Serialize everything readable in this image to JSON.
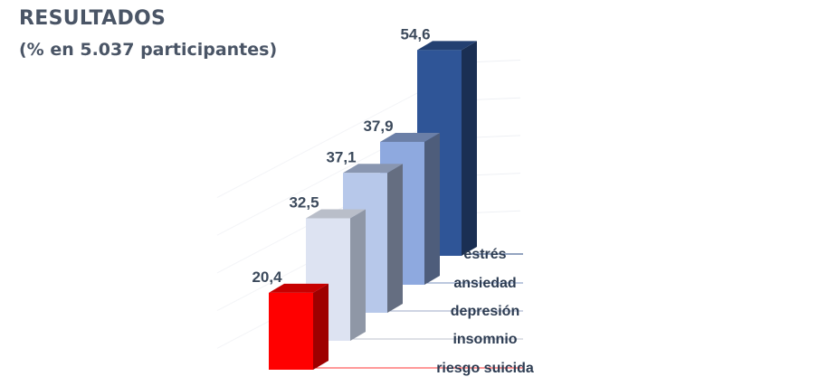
{
  "header": {
    "title": "RESULTADOS",
    "subtitle": "(% en 5.037 participantes)"
  },
  "chart_data": {
    "type": "bar",
    "title": "RESULTADOS",
    "subtitle": "(% en 5.037 participantes)",
    "categories": [
      "riesgo suicida",
      "insomnio",
      "depresión",
      "ansiedad",
      "estrés"
    ],
    "values": [
      20.4,
      32.5,
      37.1,
      37.9,
      54.6
    ],
    "value_labels": [
      "20,4",
      "32,5",
      "37,1",
      "37,9",
      "54,6"
    ],
    "colors": [
      "#ff0000",
      "#dde3f2",
      "#b7c8ea",
      "#8ea9df",
      "#2f5597"
    ],
    "ylim": [
      0,
      60
    ],
    "grid": true,
    "style": "3d-staircase"
  }
}
